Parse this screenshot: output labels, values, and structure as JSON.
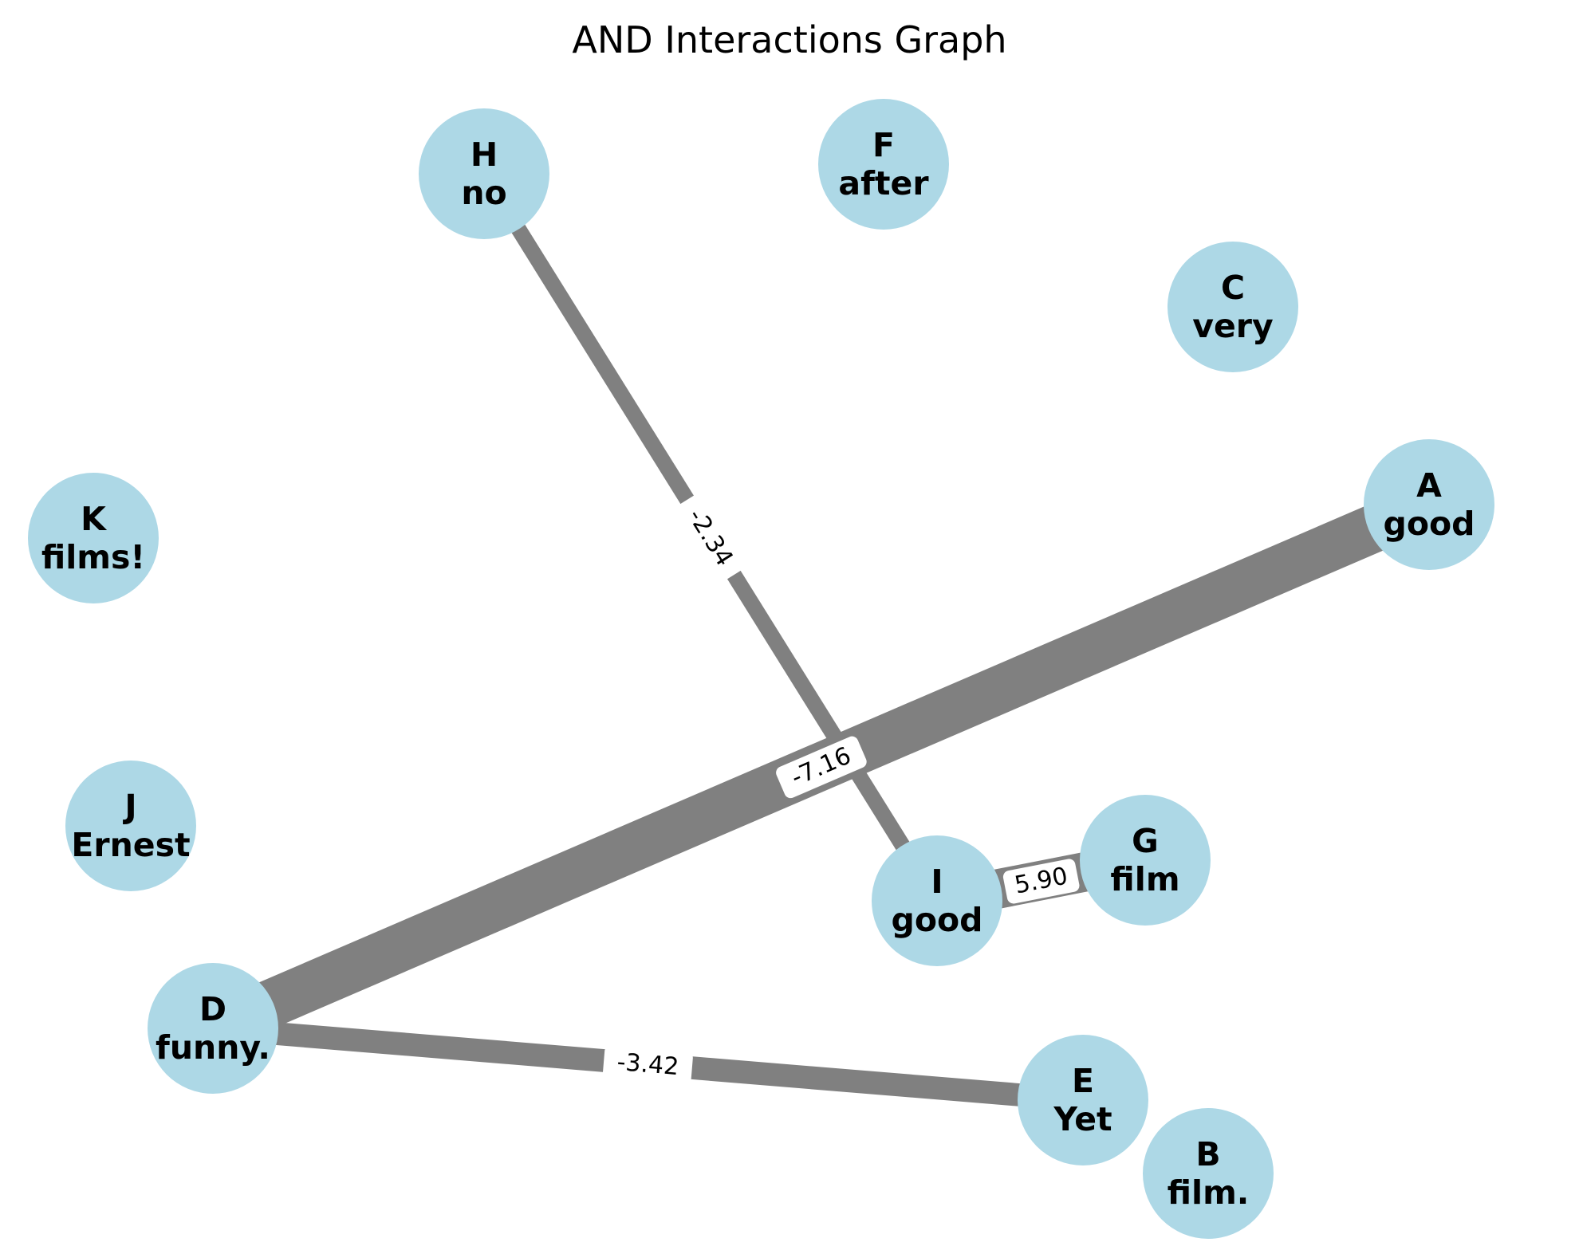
{
  "title": "AND Interactions Graph",
  "node_color": "#add8e6",
  "edge_color": "#808080",
  "nodes": [
    {
      "id": "A",
      "word": "good"
    },
    {
      "id": "B",
      "word": "film."
    },
    {
      "id": "C",
      "word": "very"
    },
    {
      "id": "D",
      "word": "funny."
    },
    {
      "id": "E",
      "word": "Yet"
    },
    {
      "id": "F",
      "word": "after"
    },
    {
      "id": "G",
      "word": "film"
    },
    {
      "id": "H",
      "word": "no"
    },
    {
      "id": "I",
      "word": "good"
    },
    {
      "id": "J",
      "word": "Ernest"
    },
    {
      "id": "K",
      "word": "films!"
    }
  ],
  "edges": [
    {
      "source": "D",
      "target": "A",
      "weight": -7.16,
      "label": "-7.16"
    },
    {
      "source": "D",
      "target": "E",
      "weight": -3.42,
      "label": "-3.42"
    },
    {
      "source": "H",
      "target": "I",
      "weight": -2.34,
      "label": "-2.34"
    },
    {
      "source": "I",
      "target": "G",
      "weight": 5.9,
      "label": "5.90"
    }
  ]
}
